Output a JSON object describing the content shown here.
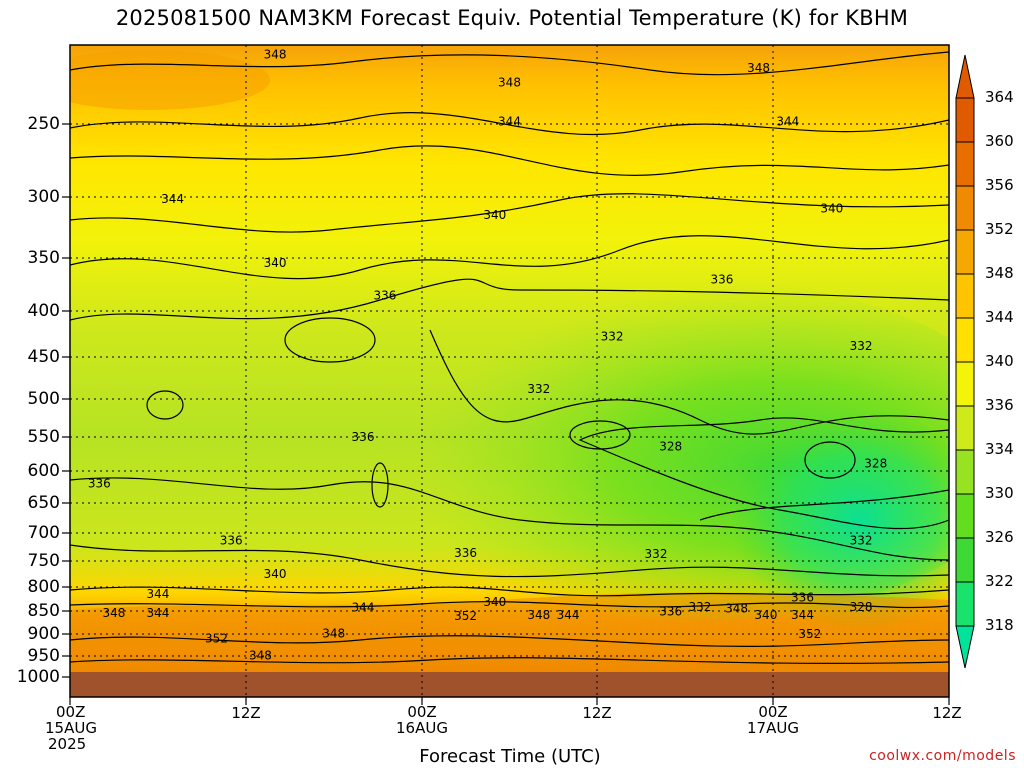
{
  "title": "2025081500 NAM3KM Forecast Equiv. Potential Temperature (K) for KBHM",
  "credit": "coolwx.com/models",
  "chart_data": {
    "type": "heatmap",
    "variable": "Equivalent Potential Temperature (K)",
    "model": "NAM3KM",
    "station": "KBHM",
    "init": "2025081500",
    "xlabel": "Forecast Time (UTC)",
    "ylabel": "",
    "y_scale": "log-pressure",
    "y_reversed": true,
    "y_ticks": [
      250,
      300,
      350,
      400,
      450,
      500,
      550,
      600,
      650,
      700,
      750,
      800,
      850,
      900,
      950,
      1000
    ],
    "x_ticks": [
      {
        "hour": 0,
        "line1": "00Z",
        "line2": "15AUG",
        "line3": "2025"
      },
      {
        "hour": 12,
        "line1": "12Z",
        "line2": "",
        "line3": ""
      },
      {
        "hour": 24,
        "line1": "00Z",
        "line2": "16AUG",
        "line3": ""
      },
      {
        "hour": 36,
        "line1": "12Z",
        "line2": "",
        "line3": ""
      },
      {
        "hour": 48,
        "line1": "00Z",
        "line2": "17AUG",
        "line3": ""
      },
      {
        "hour": 60,
        "line1": "12Z",
        "line2": "",
        "line3": ""
      }
    ],
    "x_range": [
      0,
      60
    ],
    "colorbar": {
      "levels": [
        318,
        322,
        326,
        330,
        334,
        336,
        340,
        344,
        348,
        352,
        356,
        360,
        364
      ],
      "colors": [
        "#00e39a",
        "#19e36a",
        "#3ed934",
        "#62de1e",
        "#98e321",
        "#cfea1a",
        "#f4f40a",
        "#ffe000",
        "#ffc400",
        "#f5a800",
        "#f08a00",
        "#e86e00",
        "#e05a00"
      ]
    },
    "contour_labels": [
      {
        "value": 348,
        "hour": 14,
        "p": 205
      },
      {
        "value": 348,
        "hour": 30,
        "p": 220
      },
      {
        "value": 348,
        "hour": 47,
        "p": 212
      },
      {
        "value": 344,
        "hour": 7,
        "p": 296
      },
      {
        "value": 344,
        "hour": 30,
        "p": 243
      },
      {
        "value": 344,
        "hour": 49,
        "p": 243
      },
      {
        "value": 340,
        "hour": 14,
        "p": 348
      },
      {
        "value": 340,
        "hour": 29,
        "p": 308
      },
      {
        "value": 340,
        "hour": 52,
        "p": 303
      },
      {
        "value": 336,
        "hour": 21.5,
        "p": 378
      },
      {
        "value": 336,
        "hour": 44.5,
        "p": 363
      },
      {
        "value": 332,
        "hour": 37,
        "p": 420
      },
      {
        "value": 332,
        "hour": 54,
        "p": 430
      },
      {
        "value": 332,
        "hour": 32,
        "p": 480
      },
      {
        "value": 336,
        "hour": 20,
        "p": 542
      },
      {
        "value": 328,
        "hour": 41,
        "p": 555
      },
      {
        "value": 328,
        "hour": 55,
        "p": 580
      },
      {
        "value": 336,
        "hour": 2,
        "p": 610
      },
      {
        "value": 336,
        "hour": 11,
        "p": 705
      },
      {
        "value": 336,
        "hour": 27,
        "p": 728
      },
      {
        "value": 332,
        "hour": 40,
        "p": 730
      },
      {
        "value": 332,
        "hour": 54,
        "p": 705
      },
      {
        "value": 340,
        "hour": 14,
        "p": 768
      },
      {
        "value": 344,
        "hour": 6,
        "p": 808
      },
      {
        "value": 348,
        "hour": 3,
        "p": 848
      },
      {
        "value": 344,
        "hour": 6,
        "p": 848
      },
      {
        "value": 344,
        "hour": 20,
        "p": 836
      },
      {
        "value": 340,
        "hour": 29,
        "p": 825
      },
      {
        "value": 348,
        "hour": 32,
        "p": 852
      },
      {
        "value": 344,
        "hour": 34,
        "p": 852
      },
      {
        "value": 352,
        "hour": 27,
        "p": 855
      },
      {
        "value": 348,
        "hour": 18,
        "p": 893
      },
      {
        "value": 352,
        "hour": 10,
        "p": 905
      },
      {
        "value": 348,
        "hour": 13,
        "p": 945
      },
      {
        "value": 336,
        "hour": 41,
        "p": 845
      },
      {
        "value": 332,
        "hour": 43,
        "p": 835
      },
      {
        "value": 348,
        "hour": 45.5,
        "p": 838
      },
      {
        "value": 340,
        "hour": 47.5,
        "p": 852
      },
      {
        "value": 336,
        "hour": 50,
        "p": 815
      },
      {
        "value": 344,
        "hour": 50,
        "p": 852
      },
      {
        "value": 328,
        "hour": 54,
        "p": 835
      },
      {
        "value": 352,
        "hour": 50.5,
        "p": 895
      }
    ]
  }
}
